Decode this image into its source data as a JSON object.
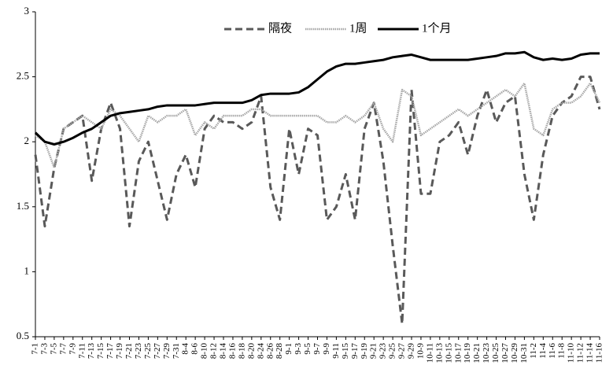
{
  "chart_data": {
    "type": "line",
    "categories": [
      "7-1",
      "7-3",
      "7-5",
      "7-7",
      "7-9",
      "7-11",
      "7-13",
      "7-15",
      "7-17",
      "7-19",
      "7-21",
      "7-23",
      "7-25",
      "7-27",
      "7-29",
      "7-31",
      "8-4",
      "8-6",
      "8-10",
      "8-12",
      "8-14",
      "8-16",
      "8-18",
      "8-20",
      "8-24",
      "8-26",
      "8-28",
      "9-1",
      "9-3",
      "9-5",
      "9-7",
      "9-9",
      "9-11",
      "9-15",
      "9-17",
      "9-19",
      "9-21",
      "9-23",
      "9-25",
      "9-27",
      "9-29",
      "10-9",
      "10-11",
      "10-13",
      "10-15",
      "10-17",
      "10-19",
      "10-21",
      "10-23",
      "10-25",
      "10-27",
      "10-29",
      "10-31",
      "11-2",
      "11-4",
      "11-6",
      "11-8",
      "11-10",
      "11-12",
      "11-14",
      "11-16"
    ],
    "series": [
      {
        "name": "隔夜",
        "color": "#595959",
        "style": "dashed",
        "values": [
          1.9,
          1.35,
          1.8,
          2.1,
          2.15,
          2.2,
          1.7,
          2.1,
          2.3,
          2.1,
          1.35,
          1.85,
          2.0,
          1.7,
          1.4,
          1.75,
          1.9,
          1.65,
          2.1,
          2.2,
          2.15,
          2.15,
          2.1,
          2.15,
          2.35,
          1.65,
          1.4,
          2.1,
          1.75,
          2.1,
          2.05,
          1.4,
          1.5,
          1.75,
          1.4,
          2.1,
          2.3,
          1.85,
          1.2,
          0.6,
          2.4,
          1.6,
          1.6,
          2.0,
          2.05,
          2.15,
          1.9,
          2.2,
          2.4,
          2.15,
          2.3,
          2.35,
          1.75,
          1.4,
          1.9,
          2.2,
          2.3,
          2.35,
          2.5,
          2.5,
          2.25
        ]
      },
      {
        "name": "1周",
        "color": "#a6a6a6",
        "style": "dotted",
        "values": [
          2.05,
          2.0,
          1.8,
          2.1,
          2.15,
          2.2,
          2.15,
          2.1,
          2.25,
          2.2,
          2.1,
          2.0,
          2.2,
          2.15,
          2.2,
          2.2,
          2.25,
          2.05,
          2.15,
          2.1,
          2.2,
          2.2,
          2.2,
          2.25,
          2.25,
          2.2,
          2.2,
          2.2,
          2.2,
          2.2,
          2.2,
          2.15,
          2.15,
          2.2,
          2.15,
          2.2,
          2.3,
          2.1,
          2.0,
          2.4,
          2.35,
          2.05,
          2.1,
          2.15,
          2.2,
          2.25,
          2.2,
          2.25,
          2.3,
          2.35,
          2.4,
          2.35,
          2.45,
          2.1,
          2.05,
          2.25,
          2.3,
          2.3,
          2.35,
          2.45,
          2.3
        ]
      },
      {
        "name": "1个月",
        "color": "#000000",
        "style": "solid",
        "values": [
          2.07,
          2.0,
          1.98,
          2.0,
          2.03,
          2.07,
          2.1,
          2.15,
          2.2,
          2.22,
          2.23,
          2.24,
          2.25,
          2.27,
          2.28,
          2.28,
          2.28,
          2.28,
          2.29,
          2.3,
          2.3,
          2.3,
          2.3,
          2.32,
          2.36,
          2.37,
          2.37,
          2.37,
          2.38,
          2.42,
          2.48,
          2.54,
          2.58,
          2.6,
          2.6,
          2.61,
          2.62,
          2.63,
          2.65,
          2.66,
          2.67,
          2.65,
          2.63,
          2.63,
          2.63,
          2.63,
          2.63,
          2.64,
          2.65,
          2.66,
          2.68,
          2.68,
          2.69,
          2.65,
          2.63,
          2.64,
          2.63,
          2.64,
          2.67,
          2.68,
          2.68
        ]
      }
    ],
    "ylim": [
      0.5,
      3
    ],
    "yticks": [
      0.5,
      1,
      1.5,
      2,
      2.5,
      3
    ],
    "grid": false,
    "legend": "top"
  }
}
